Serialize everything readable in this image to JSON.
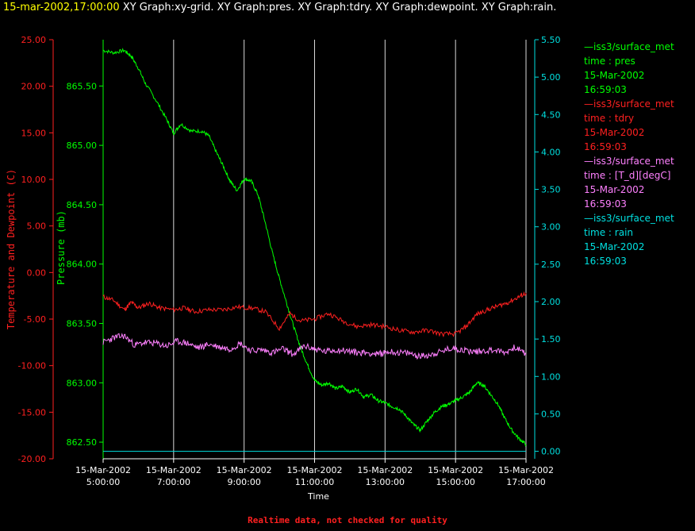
{
  "header": {
    "timestamp": "15-mar-2002,17:00:00",
    "graphs": [
      "XY Graph:xy-grid.",
      "XY Graph:pres.",
      "XY Graph:tdry.",
      "XY Graph:dewpoint.",
      "XY Graph:rain."
    ]
  },
  "colors": {
    "pres": "#00ff00",
    "tdry": "#ff2020",
    "dewpoint": "#ff80ff",
    "rain": "#00e0e0",
    "grid": "#ffffff",
    "timestamp": "#ffff00"
  },
  "legend": [
    {
      "name": "—iss3/surface_met",
      "var": "time : pres",
      "date": "15-Mar-2002",
      "time": "16:59:03",
      "color": "#00ff00"
    },
    {
      "name": "—iss3/surface_met",
      "var": "time : tdry",
      "date": "15-Mar-2002",
      "time": "16:59:03",
      "color": "#ff2020"
    },
    {
      "name": "—iss3/surface_met",
      "var": "time : [T_d][degC]",
      "date": "15-Mar-2002",
      "time": "16:59:03",
      "color": "#ff80ff"
    },
    {
      "name": "—iss3/surface_met",
      "var": "time : rain",
      "date": "15-Mar-2002",
      "time": "16:59:03",
      "color": "#00e0e0"
    }
  ],
  "footer": "Realtime data, not checked for quality",
  "chart_data": {
    "type": "line",
    "xlabel": "Time",
    "x_ticks": [
      {
        "hour": 5,
        "date": "15-Mar-2002",
        "time": "5:00:00"
      },
      {
        "hour": 7,
        "date": "15-Mar-2002",
        "time": "7:00:00"
      },
      {
        "hour": 9,
        "date": "15-Mar-2002",
        "time": "9:00:00"
      },
      {
        "hour": 11,
        "date": "15-Mar-2002",
        "time": "11:00:00"
      },
      {
        "hour": 13,
        "date": "15-Mar-2002",
        "time": "13:00:00"
      },
      {
        "hour": 15,
        "date": "15-Mar-2002",
        "time": "15:00:00"
      },
      {
        "hour": 17,
        "date": "15-Mar-2002",
        "time": "17:00:00"
      }
    ],
    "xlim": [
      5,
      17
    ],
    "axes": {
      "temp": {
        "label": "Temperature and Dewpoint (C)",
        "ylim": [
          -20,
          25
        ],
        "ticks": [
          "25.00",
          "20.00",
          "15.00",
          "10.00",
          "5.00",
          "0.00",
          "-5.00",
          "-10.00",
          "-15.00",
          "-20.00"
        ]
      },
      "pres": {
        "label": "Pressure (mb)",
        "ylim": [
          862.36,
          865.89
        ],
        "ticks": [
          "865.50",
          "865.00",
          "864.50",
          "864.00",
          "863.50",
          "863.00",
          "862.50"
        ]
      },
      "rain": {
        "label": "",
        "ylim": [
          -0.1,
          5.5
        ],
        "ticks": [
          "5.50",
          "5.00",
          "4.50",
          "4.00",
          "3.50",
          "3.00",
          "2.50",
          "2.00",
          "1.50",
          "1.00",
          "0.50",
          "0.00"
        ]
      }
    },
    "series": [
      {
        "name": "pres",
        "axis": "pres",
        "x": [
          5.0,
          5.3,
          5.6,
          5.8,
          6.0,
          6.2,
          6.5,
          6.8,
          7.0,
          7.2,
          7.5,
          7.8,
          8.0,
          8.2,
          8.4,
          8.6,
          8.8,
          9.0,
          9.2,
          9.4,
          9.6,
          9.8,
          10.0,
          10.2,
          10.4,
          10.6,
          10.8,
          11.0,
          11.2,
          11.4,
          11.6,
          11.8,
          12.0,
          12.2,
          12.4,
          12.6,
          12.8,
          13.0,
          13.2,
          13.4,
          13.6,
          13.8,
          14.0,
          14.2,
          14.4,
          14.6,
          14.8,
          15.0,
          15.2,
          15.4,
          15.6,
          15.8,
          16.0,
          16.2,
          16.4,
          16.6,
          16.8,
          17.0
        ],
        "y": [
          865.8,
          865.78,
          865.8,
          865.75,
          865.65,
          865.52,
          865.38,
          865.22,
          865.1,
          865.18,
          865.12,
          865.12,
          865.08,
          864.95,
          864.83,
          864.7,
          864.62,
          864.72,
          864.7,
          864.58,
          864.35,
          864.1,
          863.88,
          863.68,
          863.48,
          863.3,
          863.15,
          863.02,
          862.98,
          863.0,
          862.95,
          862.97,
          862.92,
          862.95,
          862.88,
          862.9,
          862.85,
          862.83,
          862.8,
          862.78,
          862.72,
          862.65,
          862.6,
          862.68,
          862.75,
          862.8,
          862.82,
          862.85,
          862.88,
          862.92,
          863.0,
          862.98,
          862.9,
          862.82,
          862.7,
          862.6,
          862.53,
          862.48
        ]
      },
      {
        "name": "tdry",
        "axis": "temp",
        "x": [
          5.0,
          5.3,
          5.6,
          5.8,
          6.0,
          6.3,
          6.6,
          7.0,
          7.3,
          7.6,
          8.0,
          8.4,
          8.8,
          9.2,
          9.6,
          10.0,
          10.3,
          10.6,
          11.0,
          11.4,
          11.8,
          12.2,
          12.6,
          13.0,
          13.4,
          13.8,
          14.2,
          14.6,
          15.0,
          15.3,
          15.6,
          15.9,
          16.2,
          16.5,
          16.8,
          17.0
        ],
        "y": [
          -2.6,
          -3.0,
          -4.0,
          -3.2,
          -3.8,
          -3.3,
          -3.8,
          -4.0,
          -3.8,
          -4.2,
          -4.0,
          -4.0,
          -3.7,
          -3.8,
          -4.2,
          -6.0,
          -4.4,
          -5.2,
          -5.0,
          -4.4,
          -5.2,
          -5.8,
          -5.6,
          -5.8,
          -6.2,
          -6.4,
          -6.2,
          -6.6,
          -6.6,
          -5.8,
          -4.5,
          -4.0,
          -3.6,
          -3.2,
          -2.6,
          -2.2
        ]
      },
      {
        "name": "dewpoint",
        "axis": "temp",
        "x": [
          5.0,
          5.3,
          5.6,
          5.9,
          6.2,
          6.5,
          6.8,
          7.1,
          7.4,
          7.7,
          8.0,
          8.3,
          8.6,
          8.9,
          9.2,
          9.5,
          9.8,
          10.1,
          10.4,
          10.7,
          11.0,
          11.3,
          11.6,
          11.9,
          12.2,
          12.5,
          12.8,
          13.1,
          13.4,
          13.7,
          14.0,
          14.3,
          14.6,
          14.9,
          15.2,
          15.5,
          15.8,
          16.1,
          16.4,
          16.7,
          17.0
        ],
        "y": [
          -7.5,
          -7.0,
          -6.8,
          -7.8,
          -7.5,
          -7.6,
          -7.9,
          -7.4,
          -7.6,
          -8.1,
          -7.7,
          -8.0,
          -8.2,
          -7.6,
          -8.4,
          -8.3,
          -8.6,
          -8.2,
          -8.8,
          -7.9,
          -8.2,
          -8.5,
          -8.3,
          -8.4,
          -8.6,
          -8.6,
          -8.8,
          -8.5,
          -8.6,
          -8.7,
          -9.0,
          -8.8,
          -8.5,
          -8.1,
          -8.3,
          -8.5,
          -8.4,
          -8.3,
          -8.6,
          -8.0,
          -8.8
        ]
      },
      {
        "name": "rain",
        "axis": "rain",
        "x": [
          5.0,
          17.0
        ],
        "y": [
          0.0,
          0.0
        ]
      }
    ]
  }
}
